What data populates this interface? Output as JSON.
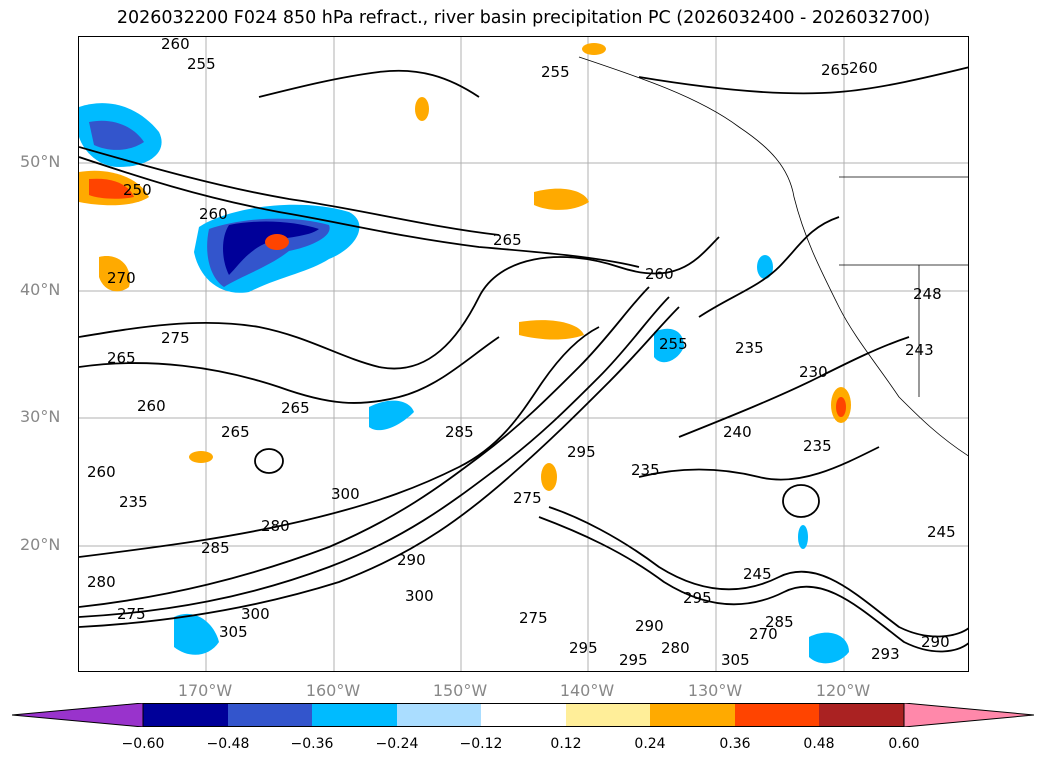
{
  "title": "2026032200 F024 850 hPa refract., river basin precipitation PC (2026032400 - 2026032700)",
  "map": {
    "lat_ticks": [
      "50°N",
      "40°N",
      "30°N",
      "20°N"
    ],
    "lon_ticks": [
      "170°W",
      "160°W",
      "150°W",
      "140°W",
      "130°W",
      "120°W"
    ],
    "contour_labels": [
      "260",
      "255",
      "255",
      "260",
      "260",
      "265",
      "250",
      "260",
      "270",
      "265",
      "248",
      "275",
      "260",
      "265",
      "265",
      "265",
      "255",
      "260",
      "235",
      "230",
      "240",
      "235",
      "243",
      "235",
      "275",
      "280",
      "285",
      "290",
      "300",
      "280",
      "275",
      "275",
      "305",
      "300",
      "290",
      "280",
      "295",
      "295",
      "285",
      "295",
      "270",
      "285",
      "300",
      "305",
      "295",
      "293",
      "290",
      "235",
      "245",
      "245"
    ],
    "grid_color": "#b0b0b0"
  },
  "colorbar": {
    "ticks": [
      "−0.60",
      "−0.48",
      "−0.36",
      "−0.24",
      "−0.12",
      "0.12",
      "0.24",
      "0.36",
      "0.48",
      "0.60"
    ],
    "colors": [
      "#9933cc",
      "#000099",
      "#3355cc",
      "#00bbff",
      "#aaddff",
      "#ffffff",
      "#ffee99",
      "#ffaa00",
      "#ff4400",
      "#aa2222",
      "#ff88aa"
    ]
  }
}
